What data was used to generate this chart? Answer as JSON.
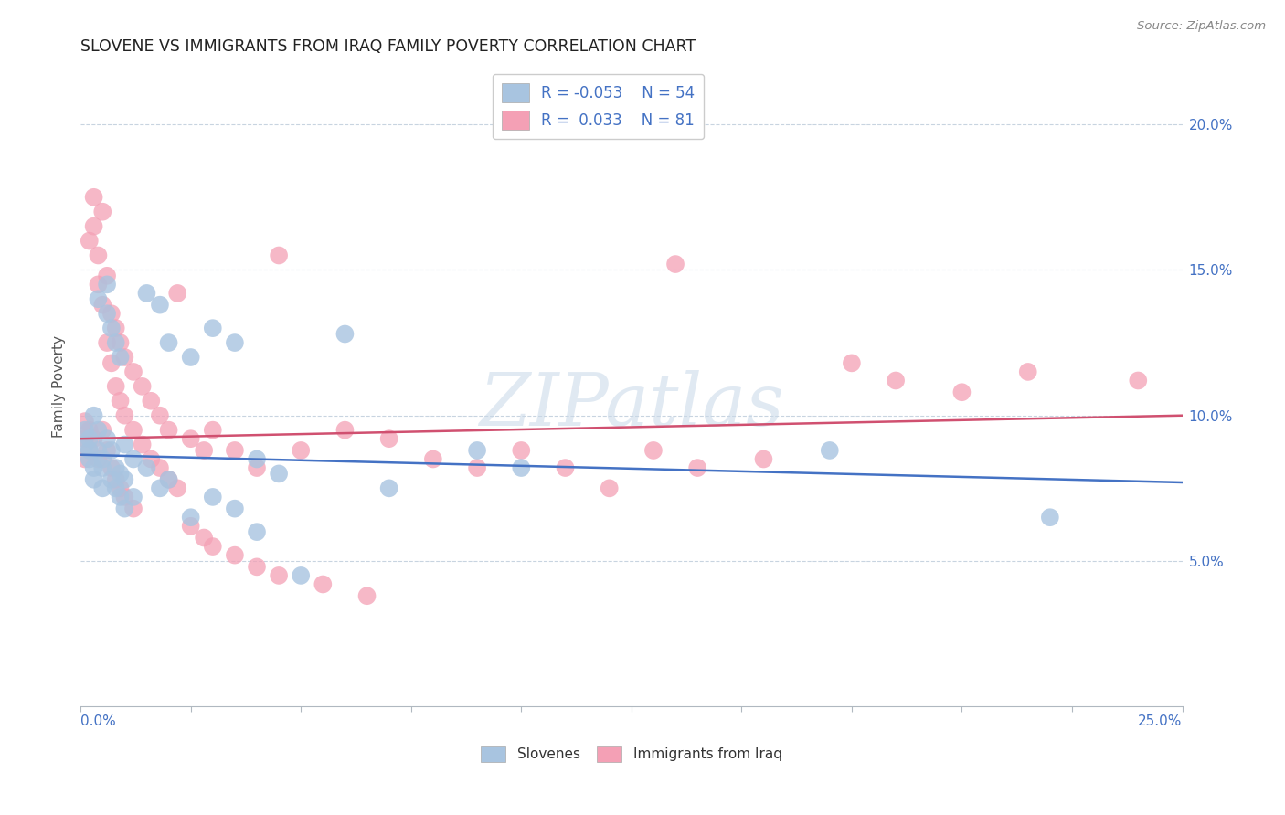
{
  "title": "SLOVENE VS IMMIGRANTS FROM IRAQ FAMILY POVERTY CORRELATION CHART",
  "source": "Source: ZipAtlas.com",
  "ylabel": "Family Poverty",
  "xlim": [
    0.0,
    0.25
  ],
  "ylim": [
    0.0,
    0.22
  ],
  "color_slovene": "#a8c4e0",
  "color_iraq": "#f4a0b5",
  "line_color_slovene": "#4472c4",
  "line_color_iraq": "#d05070",
  "watermark": "ZIPatlas",
  "slovene_intercept": 0.0865,
  "slovene_slope": -0.038,
  "iraq_intercept": 0.092,
  "iraq_slope": 0.032,
  "slovene_points": [
    [
      0.001,
      0.095
    ],
    [
      0.001,
      0.09
    ],
    [
      0.002,
      0.088
    ],
    [
      0.002,
      0.092
    ],
    [
      0.002,
      0.085
    ],
    [
      0.003,
      0.1
    ],
    [
      0.003,
      0.082
    ],
    [
      0.003,
      0.078
    ],
    [
      0.004,
      0.095
    ],
    [
      0.004,
      0.088
    ],
    [
      0.004,
      0.14
    ],
    [
      0.005,
      0.082
    ],
    [
      0.005,
      0.075
    ],
    [
      0.005,
      0.085
    ],
    [
      0.006,
      0.145
    ],
    [
      0.006,
      0.135
    ],
    [
      0.006,
      0.092
    ],
    [
      0.007,
      0.13
    ],
    [
      0.007,
      0.088
    ],
    [
      0.007,
      0.078
    ],
    [
      0.008,
      0.125
    ],
    [
      0.008,
      0.082
    ],
    [
      0.008,
      0.075
    ],
    [
      0.009,
      0.12
    ],
    [
      0.009,
      0.08
    ],
    [
      0.009,
      0.072
    ],
    [
      0.01,
      0.09
    ],
    [
      0.01,
      0.078
    ],
    [
      0.01,
      0.068
    ],
    [
      0.012,
      0.085
    ],
    [
      0.012,
      0.072
    ],
    [
      0.015,
      0.142
    ],
    [
      0.015,
      0.082
    ],
    [
      0.018,
      0.138
    ],
    [
      0.018,
      0.075
    ],
    [
      0.02,
      0.125
    ],
    [
      0.02,
      0.078
    ],
    [
      0.025,
      0.12
    ],
    [
      0.025,
      0.065
    ],
    [
      0.03,
      0.13
    ],
    [
      0.03,
      0.072
    ],
    [
      0.035,
      0.125
    ],
    [
      0.035,
      0.068
    ],
    [
      0.04,
      0.085
    ],
    [
      0.04,
      0.06
    ],
    [
      0.045,
      0.08
    ],
    [
      0.05,
      0.045
    ],
    [
      0.06,
      0.128
    ],
    [
      0.07,
      0.075
    ],
    [
      0.09,
      0.088
    ],
    [
      0.1,
      0.082
    ],
    [
      0.17,
      0.088
    ],
    [
      0.22,
      0.065
    ]
  ],
  "iraq_points": [
    [
      0.001,
      0.098
    ],
    [
      0.001,
      0.092
    ],
    [
      0.001,
      0.085
    ],
    [
      0.002,
      0.16
    ],
    [
      0.002,
      0.095
    ],
    [
      0.002,
      0.088
    ],
    [
      0.003,
      0.175
    ],
    [
      0.003,
      0.165
    ],
    [
      0.003,
      0.092
    ],
    [
      0.004,
      0.155
    ],
    [
      0.004,
      0.145
    ],
    [
      0.004,
      0.085
    ],
    [
      0.005,
      0.17
    ],
    [
      0.005,
      0.138
    ],
    [
      0.005,
      0.095
    ],
    [
      0.006,
      0.148
    ],
    [
      0.006,
      0.125
    ],
    [
      0.006,
      0.088
    ],
    [
      0.007,
      0.135
    ],
    [
      0.007,
      0.118
    ],
    [
      0.007,
      0.082
    ],
    [
      0.008,
      0.13
    ],
    [
      0.008,
      0.11
    ],
    [
      0.008,
      0.078
    ],
    [
      0.009,
      0.125
    ],
    [
      0.009,
      0.105
    ],
    [
      0.009,
      0.075
    ],
    [
      0.01,
      0.12
    ],
    [
      0.01,
      0.1
    ],
    [
      0.01,
      0.072
    ],
    [
      0.012,
      0.115
    ],
    [
      0.012,
      0.095
    ],
    [
      0.012,
      0.068
    ],
    [
      0.014,
      0.11
    ],
    [
      0.014,
      0.09
    ],
    [
      0.016,
      0.105
    ],
    [
      0.016,
      0.085
    ],
    [
      0.018,
      0.1
    ],
    [
      0.018,
      0.082
    ],
    [
      0.02,
      0.095
    ],
    [
      0.02,
      0.078
    ],
    [
      0.022,
      0.142
    ],
    [
      0.022,
      0.075
    ],
    [
      0.025,
      0.092
    ],
    [
      0.025,
      0.062
    ],
    [
      0.028,
      0.088
    ],
    [
      0.028,
      0.058
    ],
    [
      0.03,
      0.095
    ],
    [
      0.03,
      0.055
    ],
    [
      0.035,
      0.088
    ],
    [
      0.035,
      0.052
    ],
    [
      0.04,
      0.082
    ],
    [
      0.04,
      0.048
    ],
    [
      0.045,
      0.155
    ],
    [
      0.045,
      0.045
    ],
    [
      0.05,
      0.088
    ],
    [
      0.055,
      0.042
    ],
    [
      0.06,
      0.095
    ],
    [
      0.065,
      0.038
    ],
    [
      0.07,
      0.092
    ],
    [
      0.08,
      0.085
    ],
    [
      0.09,
      0.082
    ],
    [
      0.1,
      0.088
    ],
    [
      0.11,
      0.082
    ],
    [
      0.12,
      0.075
    ],
    [
      0.13,
      0.088
    ],
    [
      0.135,
      0.152
    ],
    [
      0.14,
      0.082
    ],
    [
      0.155,
      0.085
    ],
    [
      0.175,
      0.118
    ],
    [
      0.185,
      0.112
    ],
    [
      0.2,
      0.108
    ],
    [
      0.215,
      0.115
    ],
    [
      0.24,
      0.112
    ]
  ]
}
